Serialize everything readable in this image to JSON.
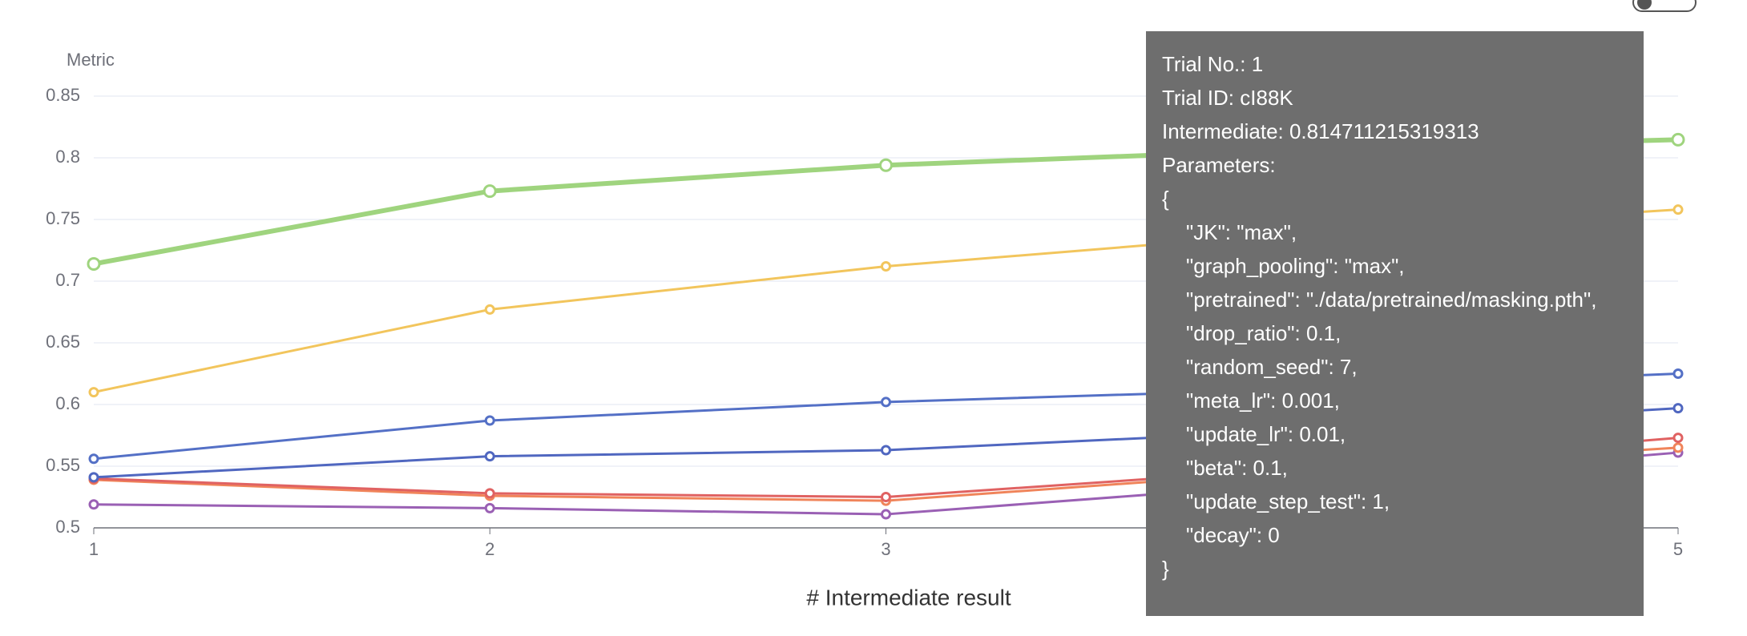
{
  "chart_data": {
    "type": "line",
    "y_label": "Metric",
    "x_label": "# Intermediate result",
    "x": [
      1,
      2,
      3,
      4,
      5
    ],
    "xlim": [
      1,
      5
    ],
    "xticks": [
      1,
      2,
      3,
      4,
      5
    ],
    "ylim": [
      0.5,
      0.85
    ],
    "yticks": [
      0.5,
      0.55,
      0.6,
      0.65,
      0.7,
      0.75,
      0.8,
      0.85
    ],
    "grid": true,
    "series": [
      {
        "color": "#9fd47e",
        "values": [
          0.714,
          0.773,
          0.794,
          0.806,
          0.814711215319313
        ]
      },
      {
        "color": "#f2c55c",
        "values": [
          0.61,
          0.677,
          0.712,
          0.738,
          0.758
        ]
      },
      {
        "color": "#5470c6",
        "values": [
          0.556,
          0.587,
          0.602,
          0.612,
          0.625
        ]
      },
      {
        "color": "#5067c0",
        "values": [
          0.541,
          0.558,
          0.563,
          0.578,
          0.597
        ]
      },
      {
        "color": "#e06262",
        "values": [
          0.54,
          0.528,
          0.525,
          0.547,
          0.573
        ]
      },
      {
        "color": "#f0845a",
        "values": [
          0.539,
          0.526,
          0.522,
          0.545,
          0.565
        ]
      },
      {
        "color": "#9a60b4",
        "values": [
          0.519,
          0.516,
          0.511,
          0.535,
          0.561
        ]
      }
    ]
  },
  "tooltip": {
    "lines": [
      "Trial No.: 1",
      "Trial ID: cI88K",
      "Intermediate: 0.814711215319313",
      "Parameters:",
      "{"
    ],
    "params": [
      "\"JK\": \"max\",",
      "\"graph_pooling\": \"max\",",
      "\"pretrained\": \"./data/pretrained/masking.pth\",",
      "\"drop_ratio\": 0.1,",
      "\"random_seed\": 7,",
      "\"meta_lr\": 0.001,",
      "\"update_lr\": 0.01,",
      "\"beta\": 0.1,",
      "\"update_step_test\": 1,",
      "\"decay\": 0"
    ],
    "close": "}"
  }
}
